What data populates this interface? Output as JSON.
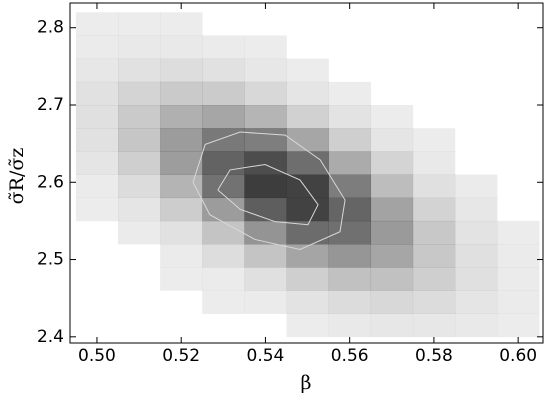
{
  "chart_data": {
    "type": "hist2d",
    "xlabel": "β",
    "ylabel": "σ̃R/σ̃z",
    "xlim": [
      0.4936,
      0.6059
    ],
    "ylim": [
      2.392,
      2.832
    ],
    "xticks": [
      {
        "value": 0.5,
        "label": "0.50"
      },
      {
        "value": 0.52,
        "label": "0.52"
      },
      {
        "value": 0.54,
        "label": "0.54"
      },
      {
        "value": 0.56,
        "label": "0.56"
      },
      {
        "value": 0.58,
        "label": "0.58"
      },
      {
        "value": 0.6,
        "label": "0.60"
      }
    ],
    "yticks": [
      2.4,
      2.5,
      2.6,
      2.7,
      2.8
    ],
    "color": "#2e2e2e",
    "xbins": [
      0.495,
      0.505,
      0.515,
      0.525,
      0.535,
      0.545,
      0.555,
      0.565,
      0.575,
      0.585,
      0.595,
      0.605
    ],
    "ybins": [
      2.4,
      2.43,
      2.46,
      2.49,
      2.52,
      2.55,
      2.58,
      2.61,
      2.64,
      2.67,
      2.7,
      2.73,
      2.76,
      2.79,
      2.82
    ],
    "counts": [
      [
        0,
        0,
        0,
        0,
        0,
        1,
        3,
        4,
        4,
        3,
        1
      ],
      [
        0,
        0,
        0,
        1,
        2,
        6,
        10,
        12,
        10,
        5,
        2
      ],
      [
        0,
        0,
        1,
        2,
        8,
        17,
        25,
        25,
        17,
        8,
        2
      ],
      [
        0,
        0,
        2,
        9,
        23,
        40,
        48,
        39,
        21,
        8,
        2
      ],
      [
        0,
        2,
        7,
        23,
        49,
        71,
        69,
        46,
        21,
        6,
        1
      ],
      [
        1,
        5,
        18,
        45,
        79,
        94,
        75,
        41,
        15,
        4,
        0
      ],
      [
        2,
        10,
        32,
        68,
        97,
        94,
        62,
        27,
        8,
        2,
        0
      ],
      [
        5,
        17,
        44,
        76,
        88,
        70,
        37,
        14,
        3,
        0,
        0
      ],
      [
        7,
        22,
        45,
        64,
        61,
        39,
        17,
        5,
        1,
        0,
        0
      ],
      [
        8,
        20,
        34,
        39,
        31,
        16,
        6,
        1,
        0,
        0,
        0
      ],
      [
        7,
        14,
        20,
        19,
        12,
        5,
        1,
        0,
        0,
        0,
        0
      ],
      [
        4,
        7,
        9,
        7,
        4,
        1,
        0,
        0,
        0,
        0,
        0
      ],
      [
        2,
        3,
        3,
        2,
        1,
        0,
        0,
        0,
        0,
        0,
        0
      ],
      [
        1,
        1,
        1,
        0,
        0,
        0,
        0,
        0,
        0,
        0,
        0
      ]
    ],
    "contour_color": "#d8d8d8",
    "contours": [
      {
        "x": [
          0.5228,
          0.5257,
          0.534,
          0.5447,
          0.553,
          0.5589,
          0.5577,
          0.5482,
          0.5375,
          0.5268,
          0.5228
        ],
        "y": [
          2.6,
          2.649,
          2.665,
          2.661,
          2.629,
          2.577,
          2.536,
          2.513,
          2.526,
          2.558,
          2.6
        ]
      },
      {
        "x": [
          0.5287,
          0.5316,
          0.5399,
          0.5482,
          0.5525,
          0.5501,
          0.5423,
          0.534,
          0.5287
        ],
        "y": [
          2.59,
          2.616,
          2.623,
          2.603,
          2.571,
          2.545,
          2.549,
          2.565,
          2.59
        ]
      }
    ]
  }
}
